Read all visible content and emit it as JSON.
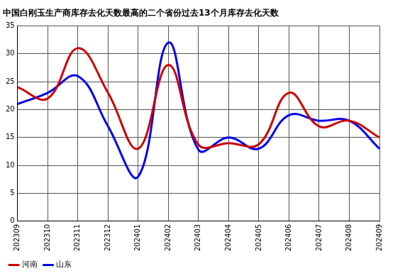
{
  "chart_data": {
    "type": "line",
    "title": "中国白刚玉生产商库存去化天数最高的二个省份过去13个月库存去化天数",
    "categories": [
      "202309",
      "202310",
      "202311",
      "202312",
      "202401",
      "202402",
      "202403",
      "202404",
      "202405",
      "202406",
      "202407",
      "202408",
      "202409"
    ],
    "series": [
      {
        "name": "河南",
        "color": "#cc0000",
        "values": [
          24,
          22,
          31,
          23,
          13,
          28,
          13.7,
          14,
          13.8,
          23,
          17,
          18,
          15
        ]
      },
      {
        "name": "山东",
        "color": "#0000ee",
        "values": [
          21,
          23,
          26,
          17,
          8,
          32,
          12.8,
          15,
          13,
          19,
          18,
          18,
          13
        ]
      }
    ],
    "ylim": [
      0,
      35
    ],
    "yticks": [
      0,
      5,
      10,
      15,
      20,
      25,
      30,
      35
    ],
    "grid": true,
    "legend": "bottom-left"
  }
}
